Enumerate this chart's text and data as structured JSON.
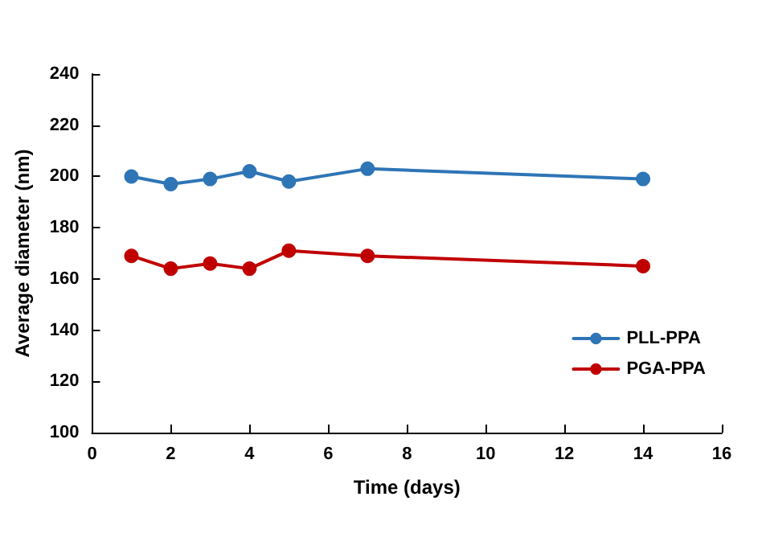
{
  "chart_data": {
    "type": "line",
    "xlabel": "Time (days)",
    "ylabel": "Average diameter (nm)",
    "x": [
      1,
      2,
      3,
      4,
      5,
      7,
      14
    ],
    "series": [
      {
        "name": "PLL-PPA",
        "color": "#2e75b6",
        "values": [
          200,
          197,
          199,
          202,
          198,
          203,
          199
        ]
      },
      {
        "name": "PGA-PPA",
        "color": "#c00000",
        "values": [
          169,
          164,
          166,
          164,
          171,
          169,
          165
        ]
      }
    ],
    "xlim": [
      0,
      16
    ],
    "xticks": [
      0,
      2,
      4,
      6,
      8,
      10,
      12,
      14,
      16
    ],
    "ylim": [
      100,
      240
    ],
    "yticks": [
      100,
      120,
      140,
      160,
      180,
      200,
      220,
      240
    ],
    "grid": false,
    "legend": "right",
    "marker": "circle",
    "line_style": "solid"
  }
}
